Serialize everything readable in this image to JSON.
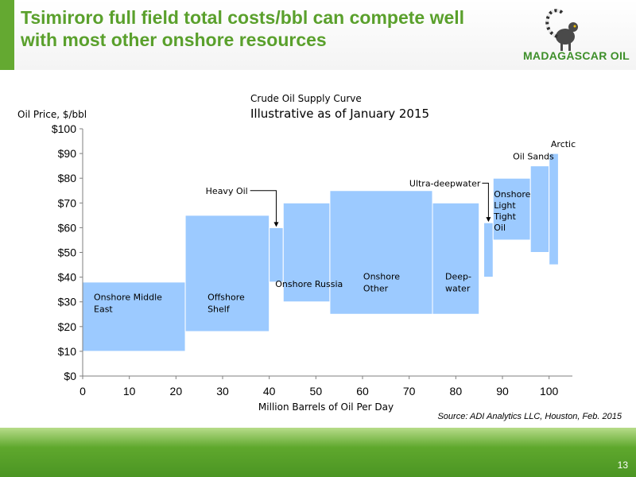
{
  "slide": {
    "title_line1": "Tsimiroro full field total costs/bbl can compete well",
    "title_line2": "with most other onshore resources",
    "logo_text": "MADAGASCAR OIL",
    "page_number": "13",
    "source": "Source:   ADI Analytics LLC, Houston, Feb. 2015",
    "colors": {
      "title": "#5aa02c",
      "footer": "#5fa82d",
      "bar": "#9ccaff"
    }
  },
  "chart_data": {
    "type": "bar",
    "variant": "supply-curve-floating-variable-width",
    "title": "Crude Oil Supply Curve",
    "subtitle": "Illustrative as of January 2015",
    "xlabel": "Million Barrels of Oil Per Day",
    "ylabel": "Oil Price, $/bbl",
    "xlim": [
      0,
      105
    ],
    "ylim": [
      0,
      100
    ],
    "xticks": [
      "0",
      "10",
      "20",
      "30",
      "40",
      "50",
      "60",
      "70",
      "80",
      "90",
      "100"
    ],
    "xtick_values": [
      0,
      10,
      20,
      30,
      40,
      50,
      60,
      70,
      80,
      90,
      100
    ],
    "yticks": [
      "$0",
      "$10",
      "$20",
      "$30",
      "$40",
      "$50",
      "$60",
      "$70",
      "$80",
      "$90",
      "$100"
    ],
    "ytick_values": [
      0,
      10,
      20,
      30,
      40,
      50,
      60,
      70,
      80,
      90,
      100
    ],
    "grid": false,
    "bars": [
      {
        "name": "Onshore Middle East",
        "label_lines": [
          "Onshore Middle",
          "East"
        ],
        "x_start": 0,
        "x_end": 22,
        "y_low": 10,
        "y_high": 38
      },
      {
        "name": "Offshore Shelf",
        "label_lines": [
          "Offshore",
          "Shelf"
        ],
        "x_start": 22,
        "x_end": 40,
        "y_low": 18,
        "y_high": 65
      },
      {
        "name": "Heavy Oil",
        "label_lines": [
          "Heavy Oil"
        ],
        "x_start": 40,
        "x_end": 43,
        "y_low": 38,
        "y_high": 60,
        "callout": true
      },
      {
        "name": "Onshore Russia",
        "label_lines": [
          "Onshore Russia"
        ],
        "x_start": 43,
        "x_end": 53,
        "y_low": 30,
        "y_high": 70
      },
      {
        "name": "Onshore Other",
        "label_lines": [
          "Onshore",
          "Other"
        ],
        "x_start": 53,
        "x_end": 75,
        "y_low": 25,
        "y_high": 75
      },
      {
        "name": "Deep-water",
        "label_lines": [
          "Deep-",
          "water"
        ],
        "x_start": 75,
        "x_end": 85,
        "y_low": 25,
        "y_high": 70
      },
      {
        "name": "Ultra-deepwater",
        "label_lines": [
          "Ultra-deepwater"
        ],
        "x_start": 86,
        "x_end": 88,
        "y_low": 40,
        "y_high": 62,
        "callout": true
      },
      {
        "name": "Onshore Light Tight Oil",
        "label_lines": [
          "Onshore",
          "Light",
          "Tight",
          "Oil"
        ],
        "x_start": 88,
        "x_end": 96,
        "y_low": 55,
        "y_high": 80
      },
      {
        "name": "Oil Sands",
        "label_lines": [
          "Oil Sands"
        ],
        "x_start": 96,
        "x_end": 100,
        "y_low": 50,
        "y_high": 85
      },
      {
        "name": "Arctic",
        "label_lines": [
          "Arctic"
        ],
        "x_start": 100,
        "x_end": 102,
        "y_low": 45,
        "y_high": 90
      }
    ]
  }
}
